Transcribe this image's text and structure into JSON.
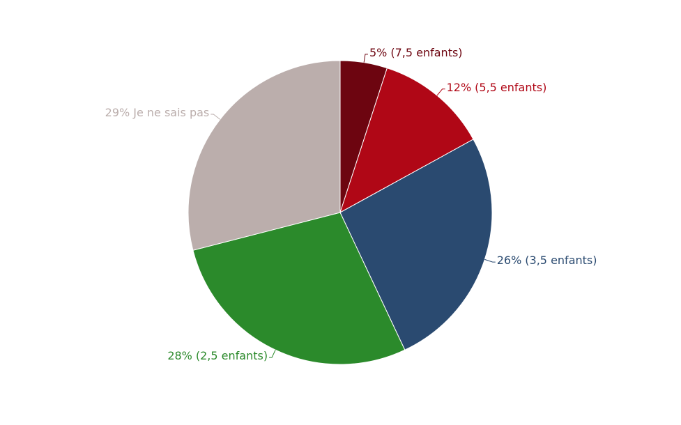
{
  "chart_data": {
    "type": "pie",
    "categories": [
      "(7,5 enfants)",
      "(5,5 enfants)",
      "(3,5 enfants)",
      "(2,5 enfants)",
      "Je ne sais pas"
    ],
    "values": [
      5,
      12,
      26,
      28,
      29
    ],
    "value_labels": [
      "5%",
      "12%",
      "26%",
      "28%",
      "29%"
    ],
    "colors": [
      "#6d0510",
      "#b00716",
      "#2a4a70",
      "#2b8a2b",
      "#bbaeac"
    ]
  }
}
